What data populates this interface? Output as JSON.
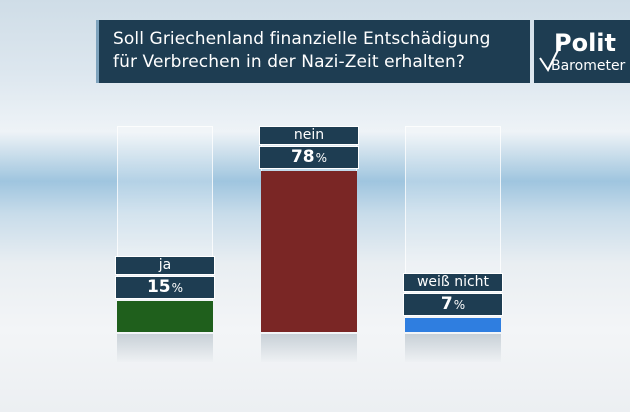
{
  "header": {
    "question_line1": "Soll Griechenland finanzielle Entschädigung",
    "question_line2": "für Verbrechen in der Nazi-Zeit erhalten?"
  },
  "brand": {
    "top": "Polit",
    "bottom": "Barometer"
  },
  "chart_data": {
    "type": "bar",
    "title": "Soll Griechenland finanzielle Entschädigung für Verbrechen in der Nazi-Zeit erhalten?",
    "categories": [
      "ja",
      "nein",
      "weiß nicht"
    ],
    "values": [
      15,
      78,
      7
    ],
    "unit": "%",
    "value_labels": [
      "15",
      "78",
      "7"
    ],
    "colors": [
      "#1f5f1c",
      "#7a2625",
      "#2f7ee0"
    ],
    "ylim": [
      0,
      100
    ],
    "grid": false,
    "legend": "none"
  }
}
